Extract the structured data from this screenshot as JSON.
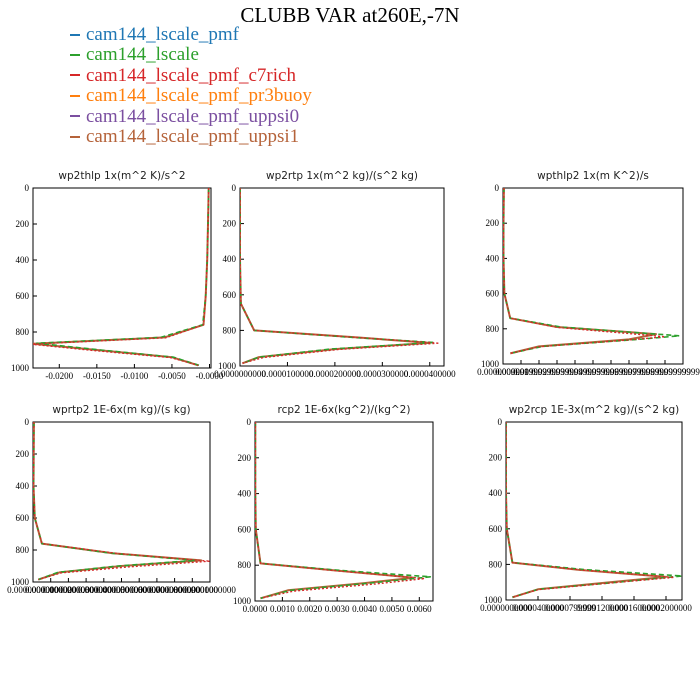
{
  "title": "CLUBB VAR at260E,-7N",
  "legend": [
    {
      "label": "cam144_lscale_pmf",
      "color": "#1f77b4"
    },
    {
      "label": "cam144_lscale",
      "color": "#2ca02c"
    },
    {
      "label": "cam144_lscale_pmf_c7rich",
      "color": "#d62728"
    },
    {
      "label": "cam144_lscale_pmf_pr3buoy",
      "color": "#ff7f0e"
    },
    {
      "label": "cam144_lscale_pmf_uppsi0",
      "color": "#7b4fa0"
    },
    {
      "label": "cam144_lscale_pmf_uppsi1",
      "color": "#b5633a"
    }
  ],
  "chart_data": [
    {
      "type": "line",
      "title": "wp2thlp   1x(m^2 K)/s^2",
      "x_ticks": [
        "-0.0200",
        "-0.0150",
        "-0.0100",
        "-0.0050",
        "-0.0000"
      ],
      "xlim": [
        -0.0235,
        0.0002
      ],
      "y_ticks": [
        "0",
        "200",
        "400",
        "600",
        "800",
        "1000"
      ],
      "ylim": [
        1000,
        0
      ],
      "series": [
        {
          "name": "cam144_lscale_pmf_uppsi1",
          "x": [
            -0.0001,
            -0.0002,
            -0.0003,
            -0.0005,
            -0.0008,
            -0.006,
            -0.0235,
            -0.015,
            -0.005,
            -0.0015
          ],
          "y": [
            0,
            200,
            400,
            600,
            760,
            830,
            865,
            900,
            940,
            985
          ]
        },
        {
          "name": "cam144_lscale",
          "x": [
            -0.0001,
            -0.0002,
            -0.0003,
            -0.0005,
            -0.0009,
            -0.0065,
            -0.023,
            -0.0145,
            -0.0048,
            -0.0014
          ],
          "y": [
            0,
            200,
            400,
            600,
            760,
            830,
            862,
            900,
            940,
            985
          ]
        },
        {
          "name": "cam144_lscale_pmf_c7rich",
          "x": [
            -0.0001,
            -0.0002,
            -0.0003,
            -0.0005,
            -0.0008,
            -0.0058,
            -0.0238,
            -0.0155,
            -0.0052,
            -0.0015
          ],
          "y": [
            0,
            200,
            400,
            600,
            760,
            832,
            868,
            903,
            942,
            985
          ]
        }
      ]
    },
    {
      "type": "line",
      "title": "wp2rtp   1x(m^2 kg)/(s^2 kg)",
      "x_ticks": [
        "0.0000000000",
        "0.0000100000",
        "0.0000200000",
        "0.0000300000",
        "0.0000400000"
      ],
      "xlim": [
        0,
        4.3e-05
      ],
      "y_ticks": [
        "0",
        "200",
        "400",
        "600",
        "800",
        "1000"
      ],
      "ylim": [
        1000,
        0
      ],
      "series": [
        {
          "name": "cam144_lscale_pmf_uppsi1",
          "x": [
            0,
            0,
            0,
            2e-07,
            3e-06,
            2.5e-05,
            4e-05,
            2e-05,
            4e-06,
            5e-07
          ],
          "y": [
            0,
            200,
            400,
            650,
            800,
            840,
            870,
            905,
            950,
            985
          ]
        },
        {
          "name": "cam144_lscale",
          "x": [
            0,
            0,
            0,
            2e-07,
            3e-06,
            2.4e-05,
            4.1e-05,
            1.9e-05,
            4e-06,
            5e-07
          ],
          "y": [
            0,
            200,
            400,
            650,
            800,
            840,
            868,
            905,
            950,
            985
          ]
        },
        {
          "name": "cam144_lscale_pmf_c7rich",
          "x": [
            0,
            0,
            0,
            2e-07,
            3e-06,
            2.6e-05,
            4.2e-05,
            2.1e-05,
            5e-06,
            5e-07
          ],
          "y": [
            0,
            200,
            400,
            650,
            800,
            842,
            872,
            907,
            952,
            985
          ]
        }
      ]
    },
    {
      "type": "line",
      "title": "wpthlp2   1x(m K^2)/s",
      "x_ticks": [
        "0.0000000000",
        "0.0099999999",
        "0.0199999999",
        "0.0299999999",
        "0.0399999999",
        "0.0499999999",
        "0.0599999999",
        "0.0699999999",
        "0.0799999999",
        "0.0899999999",
        "0.0999999999"
      ],
      "xlim": [
        0,
        0.1
      ],
      "y_ticks": [
        "0",
        "200",
        "400",
        "600",
        "800",
        "1000"
      ],
      "ylim": [
        1000,
        0
      ],
      "series": [
        {
          "name": "cam144_lscale_pmf_uppsi1",
          "x": [
            0.0005,
            0.0003,
            0.0003,
            0.0008,
            0.004,
            0.03,
            0.085,
            0.07,
            0.02,
            0.004
          ],
          "y": [
            0,
            200,
            400,
            600,
            740,
            790,
            830,
            860,
            900,
            940
          ]
        },
        {
          "name": "cam144_lscale",
          "x": [
            0.0005,
            0.0003,
            0.0003,
            0.0008,
            0.004,
            0.032,
            0.098,
            0.075,
            0.022,
            0.004
          ],
          "y": [
            0,
            200,
            400,
            600,
            740,
            790,
            840,
            860,
            900,
            940
          ]
        },
        {
          "name": "cam144_lscale_pmf_c7rich",
          "x": [
            0.0005,
            0.0003,
            0.0003,
            0.0008,
            0.004,
            0.03,
            0.09,
            0.072,
            0.02,
            0.004
          ],
          "y": [
            0,
            200,
            400,
            600,
            740,
            792,
            845,
            862,
            902,
            940
          ]
        }
      ]
    },
    {
      "type": "line",
      "title": "wprtp2   1E-6x(m kg)/(s kg)",
      "x_ticks": [
        "0.0000000000",
        "0.0000100000",
        "0.0000200000",
        "0.0000300000",
        "0.0000400000",
        "0.0000500000",
        "0.0000600000",
        "0.0000700000",
        "0.0000800000",
        "0.0000900000",
        "0.0001000000"
      ],
      "xlim": [
        0,
        0.0001
      ],
      "y_ticks": [
        "0",
        "200",
        "400",
        "600",
        "800",
        "1000"
      ],
      "ylim": [
        1000,
        0
      ],
      "series": [
        {
          "name": "cam144_lscale_pmf_uppsi1",
          "x": [
            5e-07,
            4e-07,
            3e-07,
            1e-06,
            5e-06,
            4.5e-05,
            9.5e-05,
            5e-05,
            1.5e-05,
            3e-06
          ],
          "y": [
            0,
            200,
            400,
            600,
            760,
            820,
            865,
            900,
            940,
            985
          ]
        },
        {
          "name": "cam144_lscale",
          "x": [
            5e-07,
            4e-07,
            3e-07,
            1e-06,
            5e-06,
            4.4e-05,
            9.2e-05,
            4.8e-05,
            1.4e-05,
            3e-06
          ],
          "y": [
            0,
            200,
            400,
            600,
            760,
            820,
            865,
            900,
            940,
            985
          ]
        },
        {
          "name": "cam144_lscale_pmf_c7rich",
          "x": [
            5e-07,
            4e-07,
            3e-07,
            1e-06,
            5e-06,
            4.8e-05,
            0.0001,
            5.5e-05,
            1.6e-05,
            3e-06
          ],
          "y": [
            0,
            200,
            400,
            600,
            760,
            822,
            870,
            905,
            943,
            985
          ]
        }
      ]
    },
    {
      "type": "line",
      "title": "rcp2   1E-6x(kg^2)/(kg^2)",
      "x_ticks": [
        "0.0000",
        "0.0010",
        "0.0020",
        "0.0030",
        "0.0040",
        "0.0050",
        "0.0060"
      ],
      "xlim": [
        0,
        0.0065
      ],
      "y_ticks": [
        "0",
        "200",
        "400",
        "600",
        "800",
        "1000"
      ],
      "ylim": [
        1000,
        0
      ],
      "series": [
        {
          "name": "cam144_lscale_pmf_uppsi1",
          "x": [
            1e-05,
            1e-05,
            1e-05,
            3e-05,
            0.0002,
            0.003,
            0.0058,
            0.004,
            0.0012,
            0.0002
          ],
          "y": [
            0,
            200,
            400,
            600,
            790,
            830,
            870,
            900,
            940,
            985
          ]
        },
        {
          "name": "cam144_lscale",
          "x": [
            1e-05,
            1e-05,
            1e-05,
            3e-05,
            0.0002,
            0.0032,
            0.0064,
            0.0042,
            0.0013,
            0.0002
          ],
          "y": [
            0,
            200,
            400,
            600,
            790,
            830,
            865,
            900,
            940,
            985
          ]
        },
        {
          "name": "cam144_lscale_pmf_c7rich",
          "x": [
            1e-05,
            1e-05,
            1e-05,
            3e-05,
            0.0002,
            0.003,
            0.0062,
            0.0044,
            0.0014,
            0.0002
          ],
          "y": [
            0,
            200,
            400,
            600,
            790,
            832,
            875,
            905,
            945,
            985
          ]
        }
      ]
    },
    {
      "type": "line",
      "title": "wp2rcp   1E-3x(m^2 kg)/(s^2 kg)",
      "x_ticks": [
        "0.0000000000",
        "0.0000400000",
        "0.0000799999",
        "0.0001200000",
        "0.0001600000",
        "0.0002000000"
      ],
      "xlim": [
        0,
        0.00022
      ],
      "y_ticks": [
        "0",
        "200",
        "400",
        "600",
        "800",
        "1000"
      ],
      "ylim": [
        1000,
        0
      ],
      "series": [
        {
          "name": "cam144_lscale_pmf_uppsi1",
          "x": [
            0,
            0,
            0,
            1e-06,
            8e-06,
            9e-05,
            0.0002,
            0.00013,
            4e-05,
            8e-06
          ],
          "y": [
            0,
            200,
            400,
            600,
            790,
            830,
            870,
            900,
            940,
            985
          ]
        },
        {
          "name": "cam144_lscale",
          "x": [
            0,
            0,
            0,
            1e-06,
            8e-06,
            0.0001,
            0.00022,
            0.00014,
            4e-05,
            8e-06
          ],
          "y": [
            0,
            200,
            400,
            600,
            790,
            830,
            865,
            900,
            940,
            985
          ]
        },
        {
          "name": "cam144_lscale_pmf_c7rich",
          "x": [
            0,
            0,
            0,
            1e-06,
            8e-06,
            9.5e-05,
            0.00021,
            0.000135,
            4e-05,
            8e-06
          ],
          "y": [
            0,
            200,
            400,
            600,
            790,
            832,
            873,
            903,
            942,
            985
          ]
        }
      ]
    }
  ]
}
